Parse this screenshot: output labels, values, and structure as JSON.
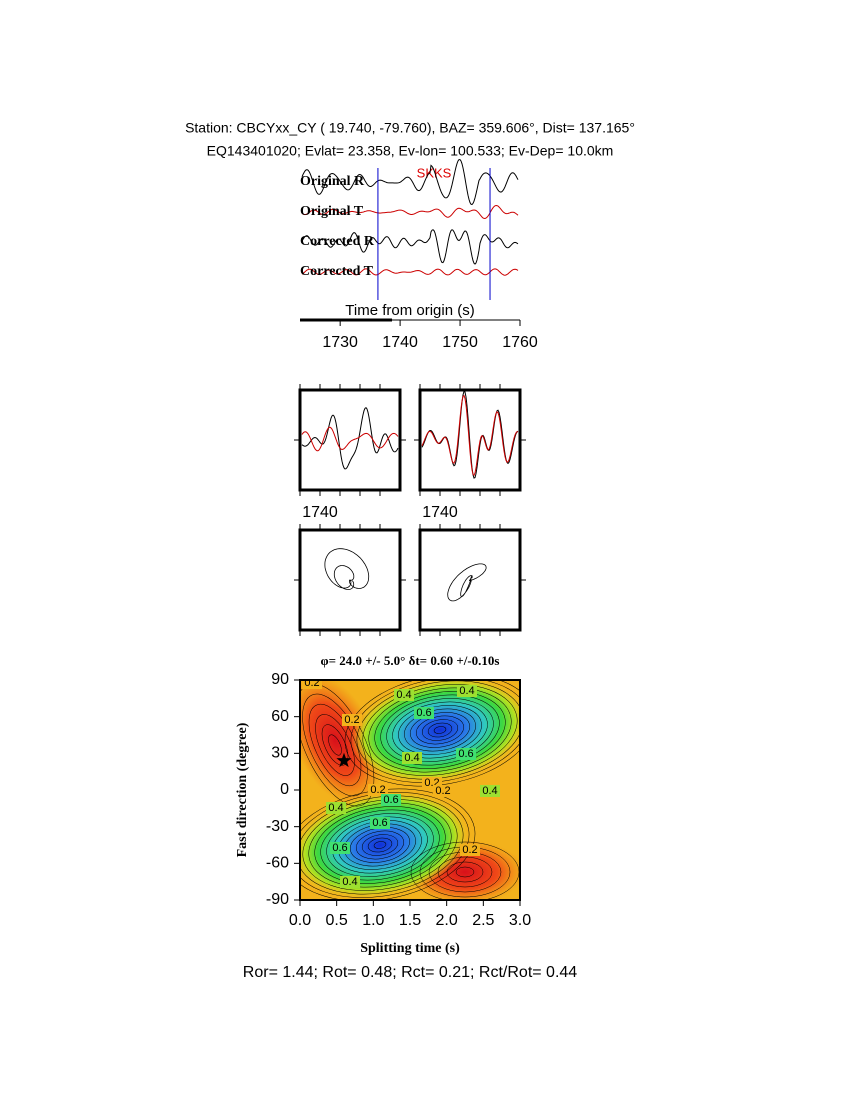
{
  "header": {
    "line1": "Station: CBCYxx_CY (  19.740,  -79.760), BAZ=  359.606°, Dist=  137.165°",
    "line2": "EQ143401020; Evlat=  23.358, Ev-lon= 100.533; Ev-Dep= 10.0km"
  },
  "waveforms": {
    "traces": [
      "Original R",
      "Original T",
      "Corrected R",
      "Corrected T"
    ],
    "phase": "SKKS",
    "xlabel": "Time from origin (s)",
    "xlim": [
      1723.3,
      1760
    ],
    "xticks": [
      1730,
      1740,
      1750,
      1760
    ],
    "window": [
      1736.3,
      1755
    ]
  },
  "particle_motion": {
    "panel_ticks": [
      1740,
      1740
    ]
  },
  "grid_search": {
    "title": "φ= 24.0 +/- 5.0° δt= 0.60 +/-0.10s",
    "xlabel": "Splitting time (s)",
    "ylabel": "Fast direction (degree)",
    "xlim": [
      0,
      3
    ],
    "ylim": [
      -90,
      90
    ],
    "xticks": [
      {
        "value": 0,
        "label": "0.0"
      },
      {
        "value": 0.5,
        "label": "0.5"
      },
      {
        "value": 1,
        "label": "1.0"
      },
      {
        "value": 1.5,
        "label": "1.5"
      },
      {
        "value": 2,
        "label": "2.0"
      },
      {
        "value": 2.5,
        "label": "2.5"
      },
      {
        "value": 3,
        "label": "3.0"
      }
    ],
    "yticks": [
      90,
      60,
      30,
      0,
      -30,
      -60,
      -90
    ],
    "best": {
      "x": 0.6,
      "y": 24
    },
    "contour_labels": [
      0.2,
      0.2,
      0.4,
      0.4,
      0.6,
      0.4,
      0.6,
      0.2,
      0.2,
      0.2,
      0.4,
      0.4,
      0.6,
      0.6,
      0.6,
      0.4,
      0.2
    ]
  },
  "footer": "Ror= 1.44; Rot= 0.48; Rct= 0.21; Rct/Rot= 0.44"
}
